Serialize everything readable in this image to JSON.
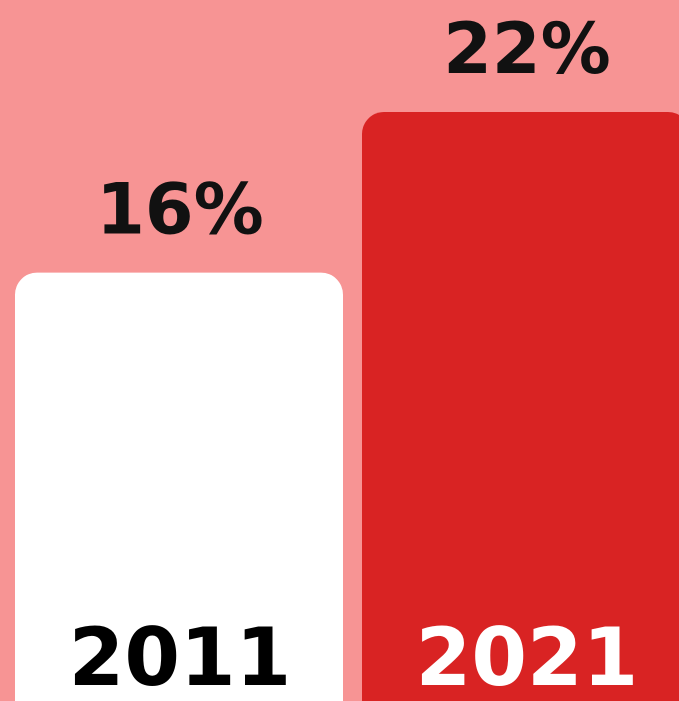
{
  "chart_data": {
    "type": "bar",
    "categories": [
      "2011",
      "2021"
    ],
    "values": [
      16,
      22
    ],
    "value_labels": [
      "16%",
      "22%"
    ],
    "colors": [
      "#ffffff",
      "#d92323"
    ],
    "background": "#f79494"
  }
}
